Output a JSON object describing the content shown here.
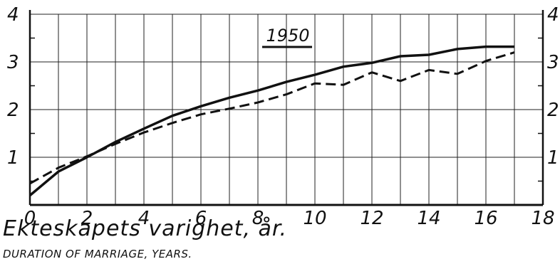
{
  "chart_data": {
    "type": "line",
    "title": "1950",
    "xlabel": "Ekteskapets varighet, år.",
    "xlabel_en": "DURATION OF MARRIAGE, YEARS.",
    "ylabel": "",
    "xlim": [
      0,
      18
    ],
    "ylim": [
      0,
      4
    ],
    "x_ticks": [
      0,
      2,
      4,
      6,
      8,
      10,
      12,
      14,
      16,
      18
    ],
    "x_tick_labels": [
      "0",
      "2",
      "4",
      "6",
      "8",
      "10",
      "12",
      "14",
      "16",
      "18"
    ],
    "y_ticks": [
      1,
      2,
      3,
      4
    ],
    "y_tick_labels": [
      "1",
      "2",
      "3",
      "4"
    ],
    "grid": true,
    "series": [
      {
        "style": "solid",
        "x": [
          0,
          1,
          2,
          3,
          4,
          5,
          6,
          7,
          8,
          9,
          10,
          11,
          12,
          13,
          14,
          15,
          16,
          17
        ],
        "values": [
          0.2,
          0.7,
          1.0,
          1.32,
          1.6,
          1.87,
          2.07,
          2.25,
          2.4,
          2.58,
          2.73,
          2.9,
          2.98,
          3.12,
          3.15,
          3.27,
          3.32,
          3.32
        ]
      },
      {
        "style": "dashed",
        "x": [
          0,
          1,
          2,
          3,
          4,
          5,
          6,
          7,
          8,
          9,
          10,
          11,
          12,
          13,
          14,
          15,
          16,
          17
        ],
        "values": [
          0.45,
          0.78,
          1.02,
          1.28,
          1.52,
          1.72,
          1.9,
          2.02,
          2.15,
          2.32,
          2.55,
          2.52,
          2.78,
          2.6,
          2.83,
          2.75,
          3.02,
          3.2
        ]
      }
    ]
  }
}
